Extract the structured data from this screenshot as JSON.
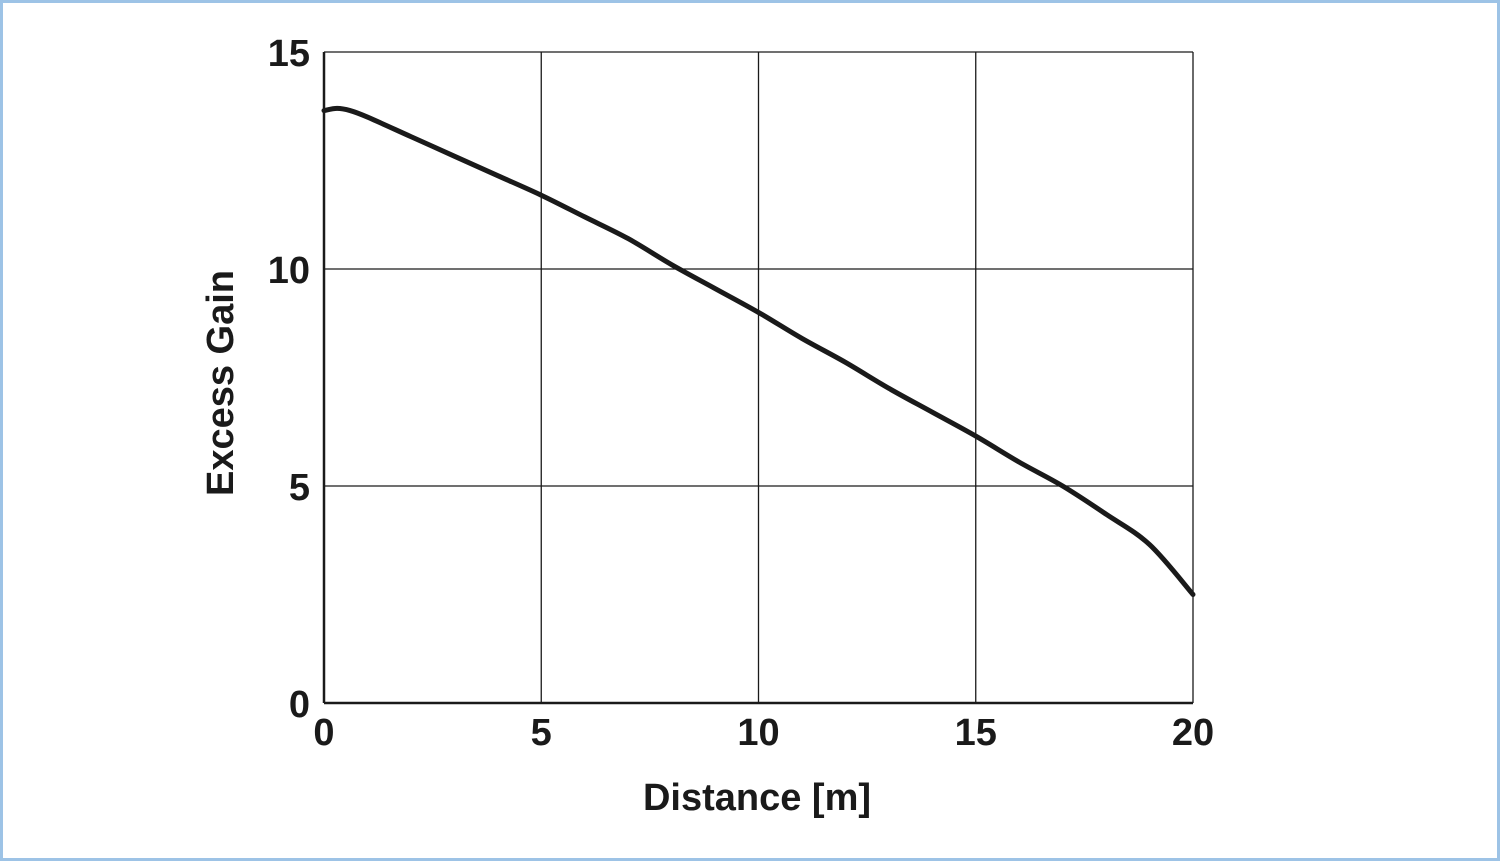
{
  "chart_data": {
    "type": "line",
    "title": "",
    "xlabel": "Distance [m]",
    "ylabel": "Excess Gain",
    "xlim": [
      0,
      20
    ],
    "ylim": [
      0,
      15
    ],
    "xticks": [
      "0",
      "5",
      "10",
      "15",
      "20"
    ],
    "yticks": [
      "0",
      "5",
      "10",
      "15"
    ],
    "grid": true,
    "line_color": "#1a1a1a",
    "border_color": "#9dc3e6",
    "series": [
      {
        "x": [
          0,
          0.3,
          0.6,
          1,
          2,
          3,
          4,
          5,
          6,
          7,
          8,
          9,
          10,
          11,
          12,
          13,
          14,
          15,
          16,
          17,
          18,
          19,
          20
        ],
        "y": [
          13.65,
          13.7,
          13.65,
          13.5,
          13.05,
          12.6,
          12.15,
          11.7,
          11.2,
          10.7,
          10.1,
          9.55,
          9.0,
          8.4,
          7.85,
          7.25,
          6.7,
          6.15,
          5.55,
          5.0,
          4.35,
          3.65,
          2.5
        ]
      }
    ]
  }
}
